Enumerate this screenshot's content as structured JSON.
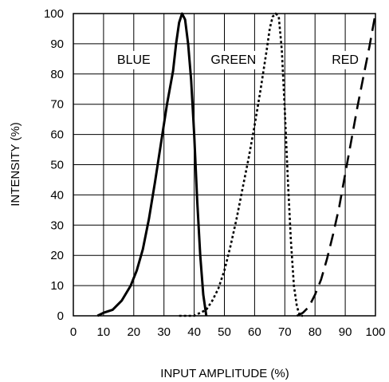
{
  "chart_data": {
    "type": "line",
    "title": "",
    "xlabel": "INPUT AMPLITUDE (%)",
    "ylabel": "INTENSITY (%)",
    "xlim": [
      0,
      100
    ],
    "ylim": [
      0,
      100
    ],
    "x_ticks": [
      0,
      10,
      20,
      30,
      40,
      50,
      60,
      70,
      80,
      90,
      100
    ],
    "y_ticks": [
      0,
      10,
      20,
      30,
      40,
      50,
      60,
      70,
      80,
      90,
      100
    ],
    "grid": true,
    "legend": "none",
    "annotations": [
      {
        "text": "BLUE",
        "x": 20,
        "y": 85
      },
      {
        "text": "GREEN",
        "x": 53,
        "y": 85
      },
      {
        "text": "RED",
        "x": 90,
        "y": 85
      }
    ],
    "series": [
      {
        "name": "BLUE",
        "line_style": "solid",
        "color": "#000000",
        "x": [
          8,
          10,
          13,
          16,
          19,
          21,
          23,
          25,
          27,
          29,
          31,
          33,
          34,
          35,
          36,
          37,
          38,
          39,
          40,
          41,
          42,
          43,
          44
        ],
        "y": [
          0,
          1,
          2,
          5,
          10,
          15,
          22,
          32,
          44,
          57,
          70,
          81,
          90,
          97,
          100,
          98,
          90,
          78,
          60,
          38,
          20,
          7,
          0
        ]
      },
      {
        "name": "GREEN",
        "line_style": "dotted",
        "color": "#000000",
        "x": [
          35,
          40,
          42,
          44,
          46,
          48,
          50,
          52,
          54,
          56,
          58,
          60,
          62,
          64,
          65,
          66,
          67,
          68,
          69,
          70,
          71,
          72,
          73,
          74,
          75,
          76
        ],
        "y": [
          0,
          0,
          1,
          2,
          5,
          9,
          15,
          23,
          32,
          42,
          52,
          63,
          75,
          88,
          95,
          99,
          100,
          99,
          88,
          68,
          45,
          25,
          10,
          3,
          0,
          0
        ]
      },
      {
        "name": "RED",
        "line_style": "dashed",
        "color": "#000000",
        "x": [
          74,
          76,
          78,
          80,
          82,
          84,
          86,
          88,
          90,
          92,
          94,
          96,
          98,
          100
        ],
        "y": [
          0,
          1,
          3,
          7,
          12,
          19,
          27,
          36,
          47,
          58,
          69,
          79,
          89,
          100
        ]
      }
    ]
  }
}
